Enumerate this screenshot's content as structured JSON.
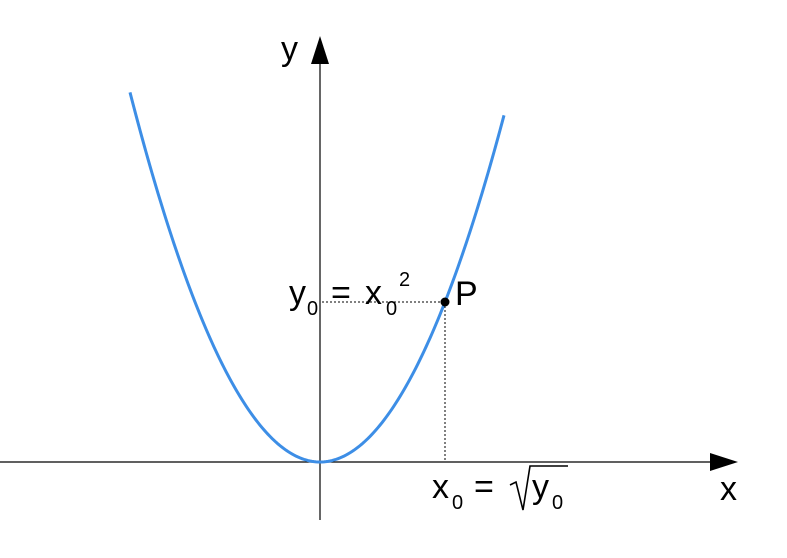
{
  "axes": {
    "x_label": "x",
    "y_label": "y"
  },
  "point": {
    "label": "P"
  },
  "y_annotation": {
    "base": "y",
    "base_sub": "0",
    "eq": "=",
    "rhs": "x",
    "rhs_sub": "0",
    "rhs_sup": "2"
  },
  "x_annotation": {
    "base": "x",
    "base_sub": "0",
    "eq": "=",
    "rad": "y",
    "rad_sub": "0"
  },
  "colors": {
    "curve": "#3d8ee6",
    "axes": "#000000",
    "guides": "#000000"
  }
}
